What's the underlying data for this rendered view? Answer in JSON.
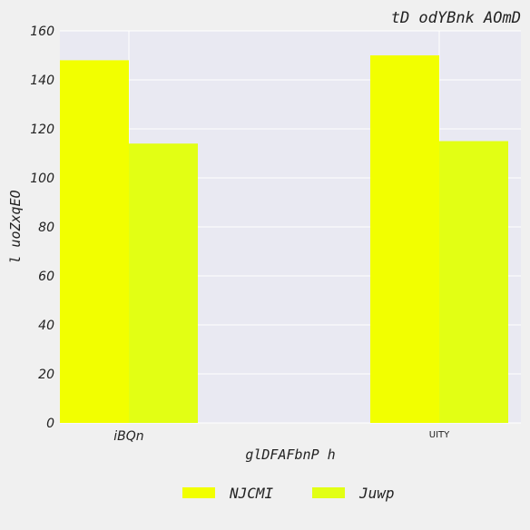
{
  "chart_data": {
    "type": "bar",
    "title": "tD odYBnk AOmD",
    "xlabel": "glDFAFbnP h",
    "ylabel": "l uoZxqEO",
    "categories": [
      "iBQn",
      "UITY"
    ],
    "series": [
      {
        "name": "NJCMI",
        "values": [
          148,
          150
        ],
        "color": "#f2ff00"
      },
      {
        "name": "Juwp",
        "values": [
          114,
          115
        ],
        "color": "#e2ff14"
      }
    ],
    "ylim": [
      0,
      160
    ],
    "yticks": [
      0,
      20,
      40,
      60,
      80,
      100,
      120,
      140,
      160
    ],
    "grid": true,
    "legend_position": "bottom-center",
    "plot_background": "#e9e9f2",
    "grid_color": "#ffffff"
  }
}
